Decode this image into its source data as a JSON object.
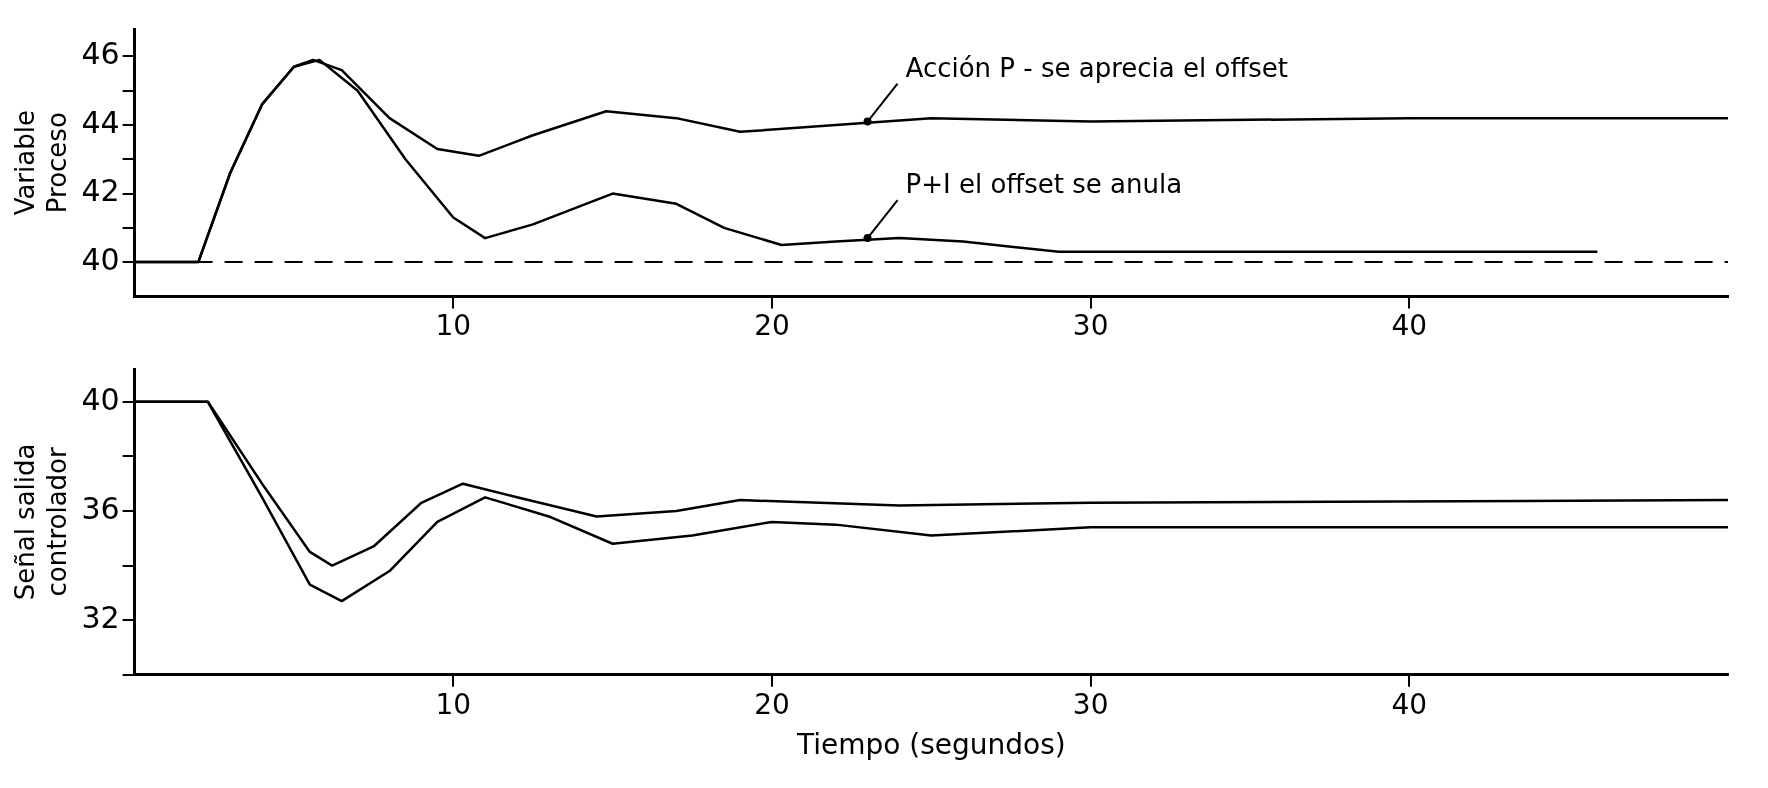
{
  "chart_data": [
    {
      "type": "line",
      "ylabel": "Variable\nProceso",
      "xlim": [
        0,
        50
      ],
      "xticks": [
        10,
        20,
        30,
        40
      ],
      "ylim": [
        39,
        46.8
      ],
      "yticks": [
        40,
        {
          "value": 41,
          "label": null
        },
        42,
        {
          "value": 43,
          "label": null
        },
        44,
        {
          "value": 45,
          "label": null
        },
        46
      ],
      "grid": false,
      "legend": false,
      "marker": "none",
      "series": [
        {
          "color": "#000000",
          "x": [
            0,
            2,
            3,
            4,
            5,
            5.6,
            6.5,
            8,
            9.5,
            10.8,
            12.5,
            14.8,
            17,
            19,
            22,
            25,
            30,
            40,
            50
          ],
          "values": [
            40,
            40,
            42.6,
            44.6,
            45.7,
            45.9,
            45.6,
            44.2,
            43.3,
            43.1,
            43.7,
            44.4,
            44.2,
            43.8,
            44,
            44.2,
            44.1,
            44.2,
            44.2
          ]
        },
        {
          "color": "#000000",
          "x": [
            0,
            2,
            3,
            4,
            5,
            5.8,
            7,
            8.5,
            10,
            11,
            12.5,
            15,
            17,
            18.5,
            20.3,
            22,
            24,
            26,
            29,
            35,
            40,
            45.9
          ],
          "values": [
            40,
            40,
            42.6,
            44.6,
            45.7,
            45.9,
            45,
            43,
            41.3,
            40.7,
            41.1,
            42,
            41.7,
            41,
            40.5,
            40.6,
            40.7,
            40.6,
            40.3,
            40.3,
            40.3,
            40.3
          ]
        }
      ],
      "ref_lines": [
        {
          "axis": "y",
          "value": 40,
          "color": "#000000",
          "line_style": "dashed"
        }
      ],
      "annotations": [
        {
          "text": "Acción P - se aprecia el offset",
          "x": 23,
          "y": 44.1
        },
        {
          "text": "P+I el offset se anula",
          "x": 23,
          "y": 40.7
        }
      ]
    },
    {
      "type": "line",
      "xlabel": "Tiempo (segundos)",
      "ylabel": "Señal salida\ncontrolador",
      "xlim": [
        0,
        50
      ],
      "xticks": [
        10,
        20,
        30,
        40
      ],
      "ylim": [
        30,
        41.2
      ],
      "yticks": [
        {
          "value": 30,
          "label": null
        },
        32,
        {
          "value": 34,
          "label": null
        },
        36,
        {
          "value": 38,
          "label": null
        },
        40
      ],
      "grid": false,
      "legend": false,
      "marker": "none",
      "series": [
        {
          "color": "#000000",
          "x": [
            0,
            2.3,
            4,
            5.5,
            6.2,
            7.5,
            9,
            10.3,
            12,
            14.5,
            17,
            19,
            24,
            30,
            50
          ],
          "values": [
            40,
            40,
            37,
            34.5,
            34,
            34.7,
            36.3,
            37,
            36.5,
            35.8,
            36,
            36.4,
            36.2,
            36.3,
            36.4
          ]
        },
        {
          "color": "#000000",
          "x": [
            0,
            2.3,
            4,
            5.5,
            6.5,
            8,
            9.5,
            11,
            13,
            15,
            17.5,
            20,
            22,
            25,
            30,
            50
          ],
          "values": [
            40,
            40,
            36.5,
            33.3,
            32.7,
            33.8,
            35.6,
            36.5,
            35.8,
            34.8,
            35.1,
            35.6,
            35.5,
            35.1,
            35.4,
            35.4
          ]
        }
      ]
    }
  ]
}
